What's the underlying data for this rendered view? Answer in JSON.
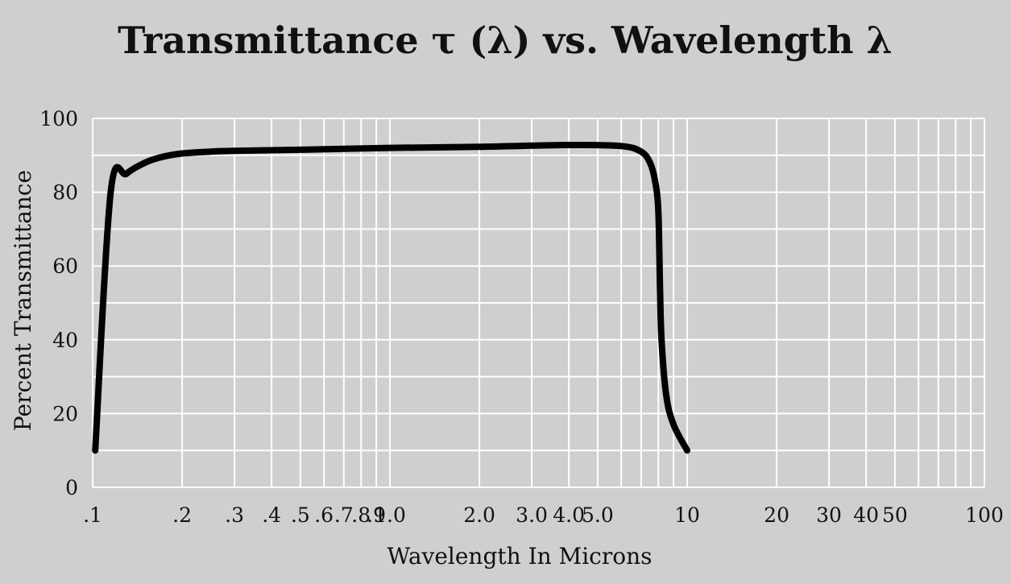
{
  "chart_data": {
    "type": "line",
    "title": "Transmittance τ (λ)  vs. Wavelength λ",
    "xlabel": "Wavelength In Microns",
    "ylabel": "Percent Transmittance",
    "x_scale": "log",
    "xlim": [
      0.1,
      100
    ],
    "ylim": [
      0,
      100
    ],
    "grid": true,
    "x_tick_labels": [
      ".1",
      ".2",
      ".3",
      ".4",
      ".5",
      ".6",
      ".7",
      ".8",
      ".9",
      "1.0",
      "2.0",
      "3.0",
      "4.0",
      "5.0",
      "10",
      "20",
      "30",
      "40",
      "50",
      "100"
    ],
    "y_tick_labels": [
      "0",
      "20",
      "40",
      "60",
      "80",
      "100"
    ],
    "series": [
      {
        "x": [
          0.102,
          0.115,
          0.13,
          0.15,
          0.17,
          0.2,
          0.25,
          0.3,
          0.5,
          1.0,
          2.0,
          4.0,
          6.0,
          7.0,
          7.5,
          7.8,
          8.0,
          8.1,
          8.2,
          8.5,
          9.0,
          10.0
        ],
        "y": [
          10,
          80,
          85,
          88,
          89.5,
          90.5,
          91,
          91.2,
          91.5,
          92,
          92.3,
          92.8,
          92.5,
          91,
          88,
          83,
          75,
          55,
          40,
          25,
          17,
          10
        ],
        "color": "#000000"
      }
    ]
  }
}
